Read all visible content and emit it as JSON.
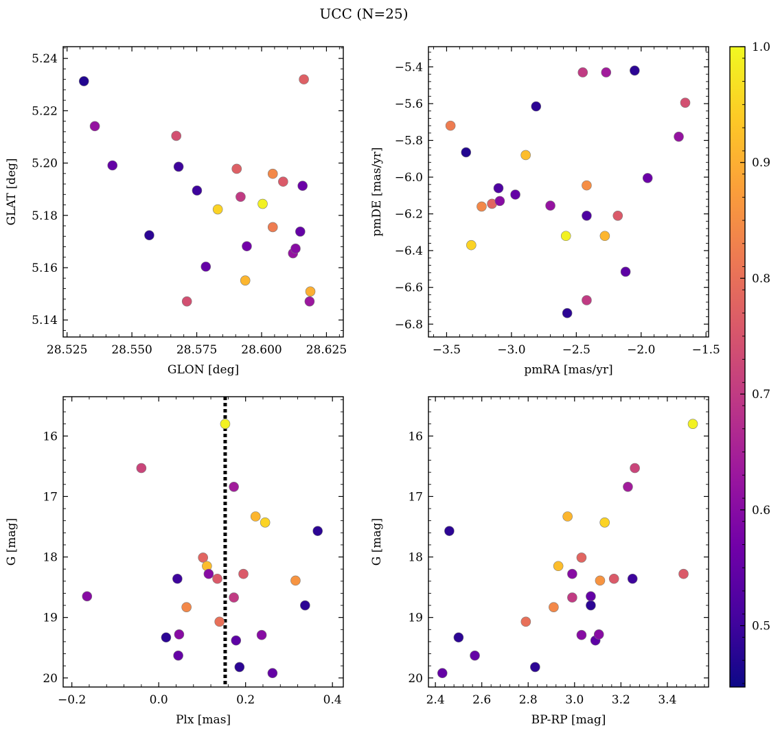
{
  "figure": {
    "title": "UCC (N=25)"
  },
  "colorbar": {
    "vmin": 0.447,
    "vmax": 1.0,
    "ticks": [
      0.5,
      0.6,
      0.7,
      0.8,
      0.9,
      1.0
    ],
    "colormap": "plasma",
    "colormap_stops": [
      "#0d0887",
      "#46039f",
      "#7201a8",
      "#9c179e",
      "#bd3786",
      "#d8576b",
      "#ed7953",
      "#fb9f3a",
      "#fdca26",
      "#f0f921"
    ]
  },
  "chart_data": [
    {
      "type": "scatter",
      "id": "glon-glat",
      "xlabel": "GLON [deg]",
      "ylabel": "GLAT [deg]",
      "xlim": [
        28.5235,
        28.6315
      ],
      "ylim": [
        5.1335,
        5.2445
      ],
      "xticks": [
        28.525,
        28.55,
        28.575,
        28.6,
        28.625
      ],
      "xtick_labels": [
        "28.525",
        "28.550",
        "28.575",
        "28.600",
        "28.625"
      ],
      "yticks": [
        5.14,
        5.16,
        5.18,
        5.2,
        5.22,
        5.24
      ],
      "ytick_labels": [
        "5.14",
        "5.16",
        "5.18",
        "5.20",
        "5.22",
        "5.24"
      ],
      "points": [
        {
          "x": 28.5315,
          "y": 5.2313,
          "c": 0.47
        },
        {
          "x": 28.5357,
          "y": 5.2141,
          "c": 0.62
        },
        {
          "x": 28.5425,
          "y": 5.1991,
          "c": 0.55
        },
        {
          "x": 28.5567,
          "y": 5.1724,
          "c": 0.48
        },
        {
          "x": 28.5671,
          "y": 5.2104,
          "c": 0.74
        },
        {
          "x": 28.568,
          "y": 5.1986,
          "c": 0.5
        },
        {
          "x": 28.5712,
          "y": 5.1471,
          "c": 0.74
        },
        {
          "x": 28.5751,
          "y": 5.1895,
          "c": 0.5
        },
        {
          "x": 28.5785,
          "y": 5.1604,
          "c": 0.55
        },
        {
          "x": 28.5831,
          "y": 5.1823,
          "c": 0.95
        },
        {
          "x": 28.5904,
          "y": 5.1978,
          "c": 0.77
        },
        {
          "x": 28.5919,
          "y": 5.1871,
          "c": 0.7
        },
        {
          "x": 28.5937,
          "y": 5.1551,
          "c": 0.91
        },
        {
          "x": 28.5943,
          "y": 5.1682,
          "c": 0.57
        },
        {
          "x": 28.6004,
          "y": 5.1844,
          "c": 0.99
        },
        {
          "x": 28.6043,
          "y": 5.1959,
          "c": 0.84
        },
        {
          "x": 28.6043,
          "y": 5.1755,
          "c": 0.82
        },
        {
          "x": 28.6083,
          "y": 5.1929,
          "c": 0.76
        },
        {
          "x": 28.6121,
          "y": 5.1655,
          "c": 0.62
        },
        {
          "x": 28.6131,
          "y": 5.1673,
          "c": 0.6
        },
        {
          "x": 28.6149,
          "y": 5.1738,
          "c": 0.55
        },
        {
          "x": 28.6158,
          "y": 5.1913,
          "c": 0.56
        },
        {
          "x": 28.6163,
          "y": 5.232,
          "c": 0.77
        },
        {
          "x": 28.6185,
          "y": 5.1471,
          "c": 0.63
        },
        {
          "x": 28.6188,
          "y": 5.1509,
          "c": 0.9
        }
      ]
    },
    {
      "type": "scatter",
      "id": "pmra-pmde",
      "xlabel": "pmRA [mas/yr]",
      "ylabel": "pmDE [mas/yr]",
      "xlim": [
        -3.64,
        -1.48
      ],
      "ylim": [
        -6.87,
        -5.29
      ],
      "xticks": [
        -3.5,
        -3.0,
        -2.5,
        -2.0,
        -1.5
      ],
      "xtick_labels": [
        "−3.5",
        "−3.0",
        "−2.5",
        "−2.0",
        "−1.5"
      ],
      "yticks": [
        -6.8,
        -6.6,
        -6.4,
        -6.2,
        -6.0,
        -5.8,
        -5.6,
        -5.4
      ],
      "ytick_labels": [
        "−6.8",
        "−6.6",
        "−6.4",
        "−6.2",
        "−6.0",
        "−5.8",
        "−5.6",
        "−5.4"
      ],
      "points": [
        {
          "x": -3.47,
          "y": -5.72,
          "c": 0.82
        },
        {
          "x": -3.35,
          "y": -5.865,
          "c": 0.47
        },
        {
          "x": -3.31,
          "y": -6.37,
          "c": 0.95
        },
        {
          "x": -3.23,
          "y": -6.16,
          "c": 0.84
        },
        {
          "x": -3.15,
          "y": -6.145,
          "c": 0.78
        },
        {
          "x": -3.1,
          "y": -6.06,
          "c": 0.52
        },
        {
          "x": -3.09,
          "y": -6.13,
          "c": 0.6
        },
        {
          "x": -2.97,
          "y": -6.095,
          "c": 0.55
        },
        {
          "x": -2.89,
          "y": -5.88,
          "c": 0.92
        },
        {
          "x": -2.81,
          "y": -5.615,
          "c": 0.48
        },
        {
          "x": -2.7,
          "y": -6.155,
          "c": 0.62
        },
        {
          "x": -2.58,
          "y": -6.32,
          "c": 0.99
        },
        {
          "x": -2.57,
          "y": -6.74,
          "c": 0.48
        },
        {
          "x": -2.45,
          "y": -5.43,
          "c": 0.7
        },
        {
          "x": -2.42,
          "y": -6.21,
          "c": 0.52
        },
        {
          "x": -2.42,
          "y": -6.045,
          "c": 0.85
        },
        {
          "x": -2.42,
          "y": -6.67,
          "c": 0.7
        },
        {
          "x": -2.28,
          "y": -6.32,
          "c": 0.91
        },
        {
          "x": -2.27,
          "y": -5.43,
          "c": 0.64
        },
        {
          "x": -2.18,
          "y": -6.21,
          "c": 0.76
        },
        {
          "x": -2.12,
          "y": -6.515,
          "c": 0.54
        },
        {
          "x": -2.05,
          "y": -5.42,
          "c": 0.48
        },
        {
          "x": -1.95,
          "y": -6.005,
          "c": 0.56
        },
        {
          "x": -1.71,
          "y": -5.78,
          "c": 0.62
        },
        {
          "x": -1.66,
          "y": -5.595,
          "c": 0.74
        }
      ]
    },
    {
      "type": "scatter",
      "id": "plx-g",
      "xlabel": "Plx [mas]",
      "ylabel": "G [mag]",
      "xlim": [
        -0.22,
        0.425
      ],
      "ylim": [
        20.15,
        15.35
      ],
      "xticks": [
        -0.2,
        0.0,
        0.2,
        0.4
      ],
      "xtick_labels": [
        "−0.2",
        "0.0",
        "0.2",
        "0.4"
      ],
      "yticks": [
        16,
        17,
        18,
        19,
        20
      ],
      "ytick_labels": [
        "16",
        "17",
        "18",
        "19",
        "20"
      ],
      "vline": 0.153,
      "points": [
        {
          "x": -0.165,
          "y": 18.65,
          "c": 0.6
        },
        {
          "x": -0.04,
          "y": 16.53,
          "c": 0.72
        },
        {
          "x": 0.017,
          "y": 19.33,
          "c": 0.48
        },
        {
          "x": 0.043,
          "y": 18.36,
          "c": 0.5
        },
        {
          "x": 0.045,
          "y": 19.63,
          "c": 0.55
        },
        {
          "x": 0.047,
          "y": 19.28,
          "c": 0.6
        },
        {
          "x": 0.064,
          "y": 18.83,
          "c": 0.84
        },
        {
          "x": 0.102,
          "y": 18.01,
          "c": 0.78
        },
        {
          "x": 0.111,
          "y": 18.15,
          "c": 0.92
        },
        {
          "x": 0.115,
          "y": 18.28,
          "c": 0.6
        },
        {
          "x": 0.135,
          "y": 18.36,
          "c": 0.76
        },
        {
          "x": 0.14,
          "y": 19.07,
          "c": 0.8
        },
        {
          "x": 0.153,
          "y": 15.8,
          "c": 0.99
        },
        {
          "x": 0.173,
          "y": 16.84,
          "c": 0.64
        },
        {
          "x": 0.173,
          "y": 18.67,
          "c": 0.7
        },
        {
          "x": 0.178,
          "y": 19.38,
          "c": 0.54
        },
        {
          "x": 0.186,
          "y": 19.82,
          "c": 0.48
        },
        {
          "x": 0.195,
          "y": 18.28,
          "c": 0.76
        },
        {
          "x": 0.223,
          "y": 17.33,
          "c": 0.91
        },
        {
          "x": 0.237,
          "y": 19.29,
          "c": 0.6
        },
        {
          "x": 0.245,
          "y": 17.43,
          "c": 0.95
        },
        {
          "x": 0.262,
          "y": 19.92,
          "c": 0.55
        },
        {
          "x": 0.315,
          "y": 18.39,
          "c": 0.86
        },
        {
          "x": 0.337,
          "y": 18.8,
          "c": 0.48
        },
        {
          "x": 0.366,
          "y": 17.57,
          "c": 0.48
        }
      ]
    },
    {
      "type": "scatter",
      "id": "bprp-g",
      "xlabel": "BP-RP [mag]",
      "ylabel": "G [mag]",
      "xlim": [
        2.37,
        3.578
      ],
      "ylim": [
        20.15,
        15.35
      ],
      "xticks": [
        2.4,
        2.6,
        2.8,
        3.0,
        3.2,
        3.4
      ],
      "xtick_labels": [
        "2.4",
        "2.6",
        "2.8",
        "3.0",
        "3.2",
        "3.4"
      ],
      "yticks": [
        16,
        17,
        18,
        19,
        20
      ],
      "ytick_labels": [
        "16",
        "17",
        "18",
        "19",
        "20"
      ],
      "points": [
        {
          "x": 2.43,
          "y": 19.92,
          "c": 0.55
        },
        {
          "x": 2.46,
          "y": 17.57,
          "c": 0.48
        },
        {
          "x": 2.5,
          "y": 19.33,
          "c": 0.48
        },
        {
          "x": 2.57,
          "y": 19.63,
          "c": 0.55
        },
        {
          "x": 2.79,
          "y": 19.07,
          "c": 0.8
        },
        {
          "x": 2.83,
          "y": 19.82,
          "c": 0.48
        },
        {
          "x": 2.91,
          "y": 18.83,
          "c": 0.84
        },
        {
          "x": 2.93,
          "y": 18.15,
          "c": 0.92
        },
        {
          "x": 2.97,
          "y": 17.33,
          "c": 0.91
        },
        {
          "x": 2.99,
          "y": 18.67,
          "c": 0.7
        },
        {
          "x": 2.99,
          "y": 18.28,
          "c": 0.6
        },
        {
          "x": 3.03,
          "y": 18.01,
          "c": 0.78
        },
        {
          "x": 3.03,
          "y": 19.29,
          "c": 0.6
        },
        {
          "x": 3.07,
          "y": 18.65,
          "c": 0.55
        },
        {
          "x": 3.07,
          "y": 18.8,
          "c": 0.48
        },
        {
          "x": 3.09,
          "y": 19.38,
          "c": 0.54
        },
        {
          "x": 3.105,
          "y": 19.28,
          "c": 0.6
        },
        {
          "x": 3.11,
          "y": 18.39,
          "c": 0.86
        },
        {
          "x": 3.13,
          "y": 17.43,
          "c": 0.95
        },
        {
          "x": 3.17,
          "y": 18.36,
          "c": 0.76
        },
        {
          "x": 3.23,
          "y": 16.84,
          "c": 0.64
        },
        {
          "x": 3.25,
          "y": 18.36,
          "c": 0.5
        },
        {
          "x": 3.26,
          "y": 16.53,
          "c": 0.72
        },
        {
          "x": 3.47,
          "y": 18.28,
          "c": 0.76
        },
        {
          "x": 3.51,
          "y": 15.8,
          "c": 0.99
        }
      ]
    }
  ]
}
